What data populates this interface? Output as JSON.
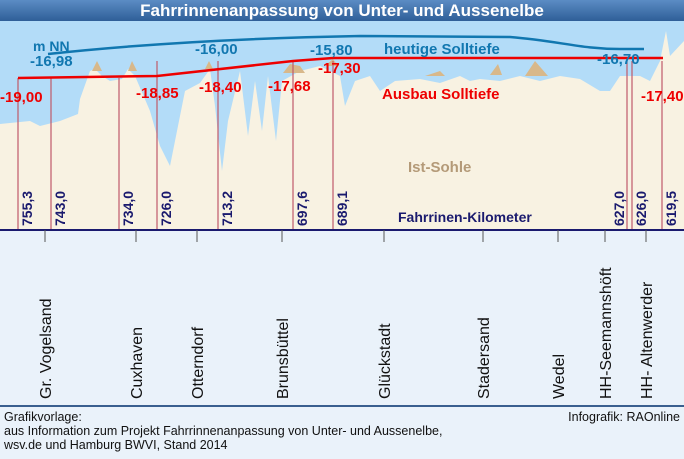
{
  "title": "Fahrrinnenanpassung von Unter- und Aussenelbe",
  "unit_label": "m NN",
  "legend": {
    "current": "heutige Solltiefe",
    "planned": "Ausbau Solltiefe",
    "bed": "Ist-Sohle",
    "axis": "Fahrrinen-Kilometer"
  },
  "current_depths": [
    "-16,98",
    "-16,00",
    "-15,80",
    "-16,70"
  ],
  "planned_depths": [
    "-19,00",
    "-18,85",
    "-18,40",
    "-17,68",
    "-17,30",
    "-17,40"
  ],
  "kilometers": [
    "755,3",
    "743,0",
    "734,0",
    "726,0",
    "713,2",
    "697,6",
    "689,1",
    "627,0",
    "626,0",
    "619,5"
  ],
  "places": [
    "Gr. Vogelsand",
    "Cuxhaven",
    "Otterndorf",
    "Brunsbüttel",
    "Glückstadt",
    "Stadersand",
    "Wedel",
    "HH-Seemannshöft",
    "HH- Altenwerder"
  ],
  "footer": {
    "line1": "Grafikvorlage:",
    "line2": "aus Information zum Projekt Fahrrinnenanpassung von Unter- und Aussenelbe,",
    "line3": "wsv.de und Hamburg BWVI, Stand 2014",
    "credit": "Infografik: RAOnline"
  },
  "colors": {
    "water": "#b3dcf8",
    "bed": "#f8f2e2",
    "current": "#1177b0",
    "planned": "#ee0000",
    "km": "#1a1a6e"
  }
}
